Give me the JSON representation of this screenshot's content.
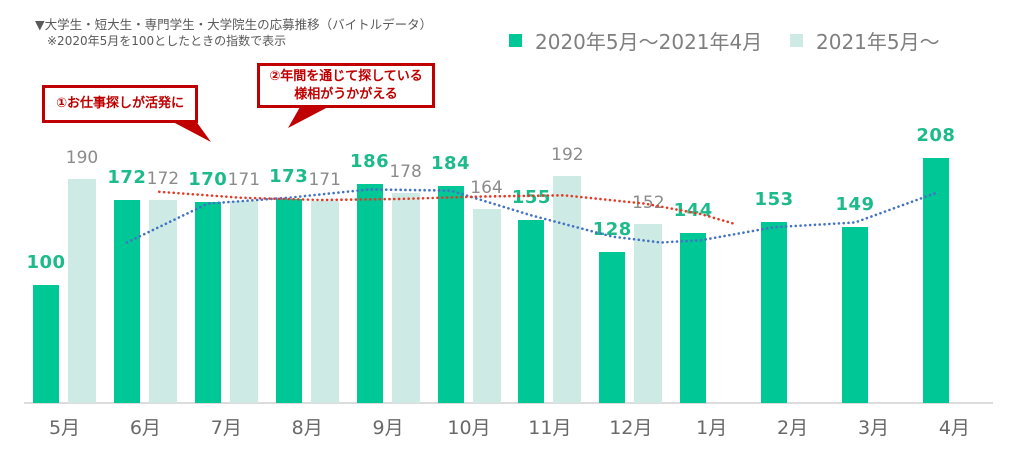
{
  "header": {
    "title": "▼大学生・短大生・専門学生・大学院生の応募推移（バイトルデータ）",
    "subtitle": "※2020年5月を100としたときの指数で表示"
  },
  "legend": [
    {
      "label": "2020年5月〜2021年4月",
      "color": "#00c796"
    },
    {
      "label": "2021年5月〜",
      "color": "#cdebe4"
    }
  ],
  "annotations": [
    {
      "text": "①お仕事探しが活発に"
    },
    {
      "lines": [
        "②年間を通じて探している",
        "様相がうかがえる"
      ]
    }
  ],
  "chart_data": {
    "type": "bar",
    "title": "大学生・短大生・専門学生・大学院生の応募推移（バイトルデータ）",
    "subtitle": "2020年5月を100としたときの指数で表示",
    "categories": [
      "5月",
      "6月",
      "7月",
      "8月",
      "9月",
      "10月",
      "11月",
      "12月",
      "1月",
      "2月",
      "3月",
      "4月"
    ],
    "series": [
      {
        "name": "2020年5月〜2021年4月",
        "color": "#00c796",
        "label_color": "#1dba8c",
        "values": [
          100,
          172,
          170,
          173,
          186,
          184,
          155,
          128,
          144,
          153,
          149,
          208
        ]
      },
      {
        "name": "2021年5月〜",
        "color": "#cdebe4",
        "label_color": "#8b8b8b",
        "values": [
          190,
          172,
          171,
          171,
          178,
          164,
          192,
          152,
          null,
          null,
          null,
          null
        ]
      }
    ],
    "trend_lines": [
      {
        "name": "2020-series-trend",
        "color": "#4472c4",
        "style": "dotted",
        "points": [
          [
            1.0,
            136
          ],
          [
            2,
            169
          ],
          [
            3,
            174
          ],
          [
            4,
            181
          ],
          [
            5,
            180
          ],
          [
            6,
            159
          ],
          [
            7,
            141
          ],
          [
            7.6,
            136
          ],
          [
            8.1,
            138
          ],
          [
            9,
            149
          ],
          [
            10,
            153
          ],
          [
            11,
            178
          ]
        ]
      },
      {
        "name": "2021-series-trend",
        "color": "#e33a26",
        "style": "dotted",
        "points": [
          [
            1.4,
            179
          ],
          [
            2.4,
            174
          ],
          [
            3.4,
            172
          ],
          [
            4.4,
            173
          ],
          [
            5.4,
            175
          ],
          [
            6.4,
            176
          ],
          [
            7.4,
            169
          ],
          [
            8.1,
            160
          ],
          [
            8.5,
            152
          ]
        ]
      }
    ],
    "xlabel": "",
    "ylabel": "",
    "ylim": [
      0,
      230
    ],
    "grid": false,
    "y_axis_visible": false,
    "legend_position": "top-right"
  }
}
